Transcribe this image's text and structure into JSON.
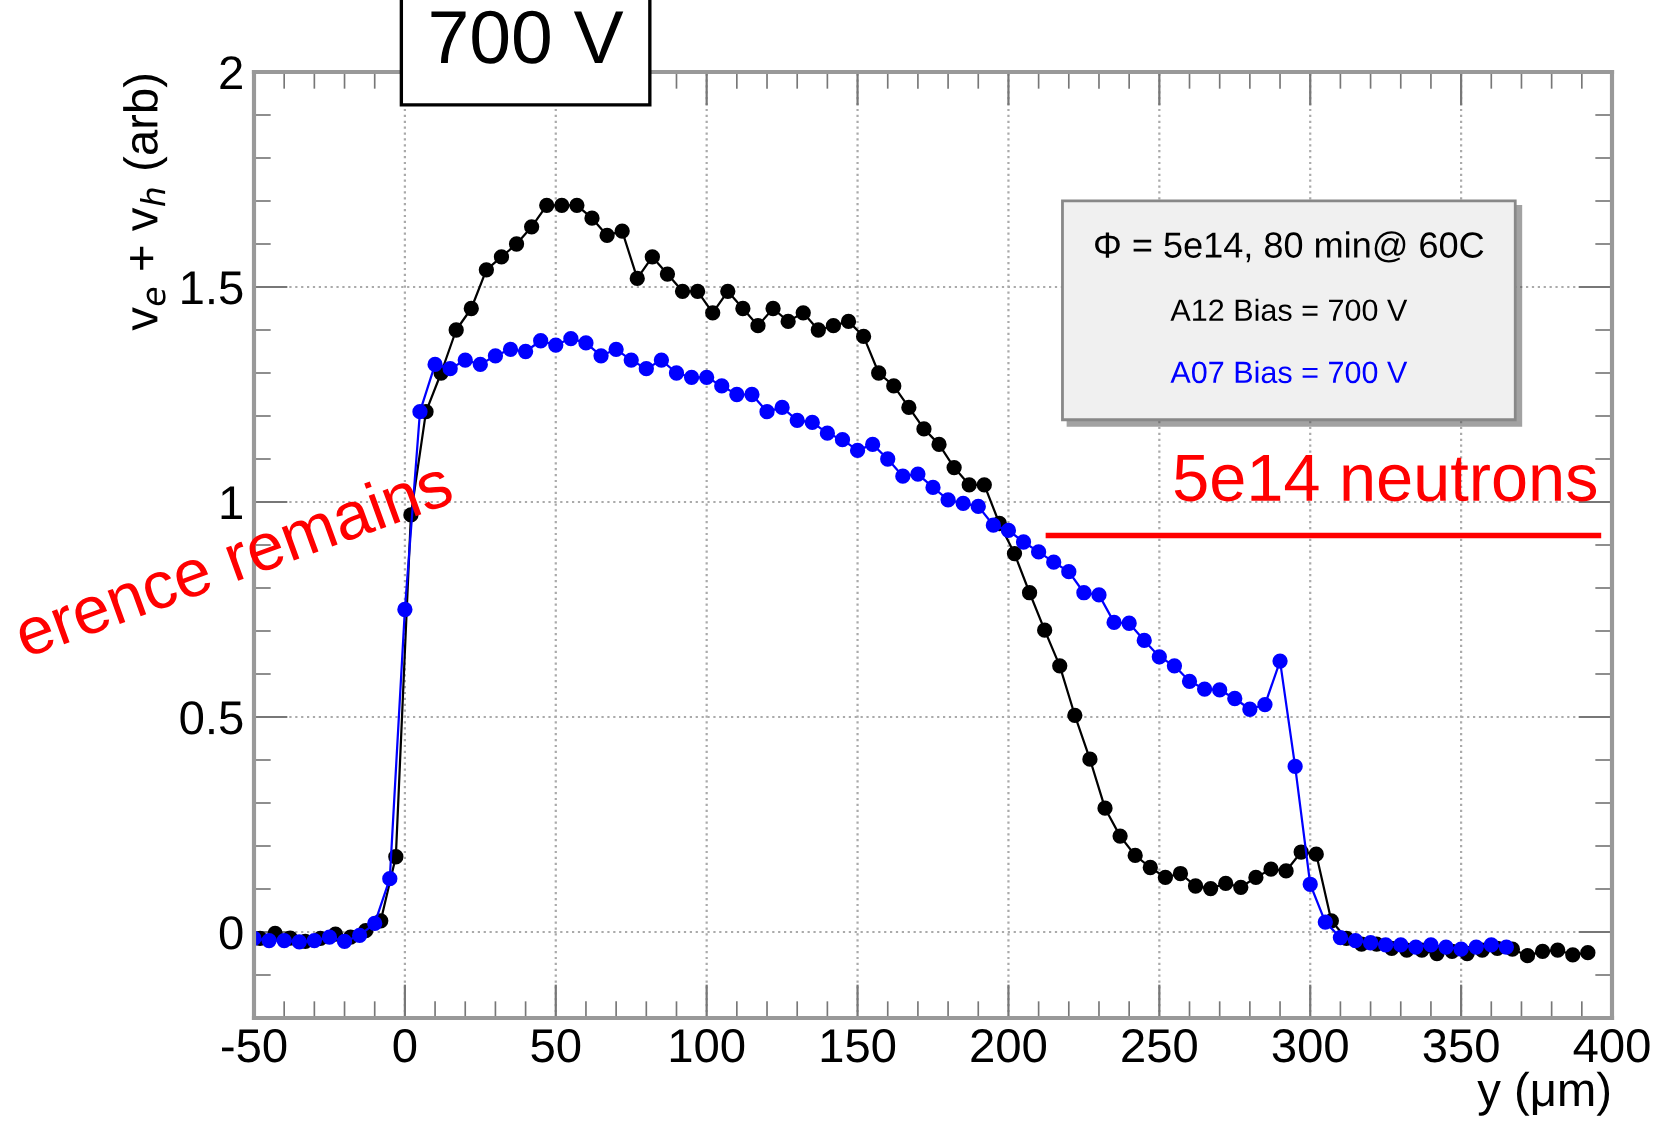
{
  "chart_data": {
    "type": "line",
    "title": "700 V",
    "xlabel": "y (μm)",
    "ylabel": "v$_{e}$ + v$_{h}$ (arb)",
    "legend_title": "Φ = 5e14, 80 min@ 60C",
    "legend": "top right",
    "grid": true,
    "marker": "circle",
    "line_style": "solid",
    "xlim": [
      -50,
      400
    ],
    "xticks": [
      -50,
      0,
      50,
      100,
      150,
      200,
      250,
      300,
      350,
      400
    ],
    "ylim": [
      -0.2,
      2
    ],
    "yticks": [
      0,
      0.5,
      1,
      1.5,
      2
    ],
    "annotations": [
      "5e14 neutrons",
      "erence remains"
    ],
    "series": [
      {
        "name": "A12 Bias = 700 V",
        "color": "#000000",
        "x": [
          -48,
          -43,
          -38,
          -33,
          -28,
          -23,
          -18,
          -13,
          -8,
          -3,
          2,
          7,
          12,
          17,
          22,
          27,
          32,
          37,
          42,
          47,
          52,
          57,
          62,
          67,
          72,
          77,
          82,
          87,
          92,
          97,
          102,
          107,
          112,
          117,
          122,
          127,
          132,
          137,
          142,
          147,
          152,
          157,
          162,
          167,
          172,
          177,
          182,
          187,
          192,
          197,
          202,
          207,
          212,
          217,
          222,
          227,
          232,
          237,
          242,
          247,
          252,
          257,
          262,
          267,
          272,
          277,
          282,
          287,
          292,
          297,
          302,
          307,
          312,
          317,
          322,
          327,
          332,
          337,
          342,
          347,
          352,
          357,
          362,
          367,
          372,
          377,
          382,
          387,
          392
        ],
        "values": [
          -0.015,
          -0.003,
          -0.014,
          -0.022,
          -0.015,
          -0.005,
          -0.012,
          0.003,
          0.026,
          0.175,
          0.97,
          1.21,
          1.3,
          1.4,
          1.45,
          1.54,
          1.57,
          1.6,
          1.64,
          1.69,
          1.69,
          1.69,
          1.66,
          1.62,
          1.63,
          1.52,
          1.57,
          1.53,
          1.49,
          1.49,
          1.44,
          1.49,
          1.45,
          1.41,
          1.45,
          1.42,
          1.44,
          1.4,
          1.41,
          1.42,
          1.385,
          1.3,
          1.27,
          1.22,
          1.17,
          1.134,
          1.08,
          1.04,
          1.04,
          0.95,
          0.88,
          0.789,
          0.702,
          0.619,
          0.504,
          0.402,
          0.288,
          0.223,
          0.178,
          0.15,
          0.127,
          0.136,
          0.107,
          0.101,
          0.113,
          0.104,
          0.127,
          0.146,
          0.142,
          0.186,
          0.181,
          0.026,
          -0.015,
          -0.028,
          -0.028,
          -0.038,
          -0.042,
          -0.042,
          -0.05,
          -0.045,
          -0.05,
          -0.042,
          -0.038,
          -0.04,
          -0.055,
          -0.045,
          -0.042,
          -0.053,
          -0.048
        ]
      },
      {
        "name": "A07 Bias = 700 V",
        "color": "#0000ff",
        "x": [
          -50,
          -45,
          -40,
          -35,
          -30,
          -25,
          -20,
          -15,
          -10,
          -5,
          0,
          5,
          10,
          15,
          20,
          25,
          30,
          35,
          40,
          45,
          50,
          55,
          60,
          65,
          70,
          75,
          80,
          85,
          90,
          95,
          100,
          105,
          110,
          115,
          120,
          125,
          130,
          135,
          140,
          145,
          150,
          155,
          160,
          165,
          170,
          175,
          180,
          185,
          190,
          195,
          200,
          205,
          210,
          215,
          220,
          225,
          230,
          235,
          240,
          245,
          250,
          255,
          260,
          265,
          270,
          275,
          280,
          285,
          290,
          295,
          300,
          305,
          310,
          315,
          320,
          325,
          330,
          335,
          340,
          345,
          350,
          355,
          360,
          365
        ],
        "values": [
          -0.015,
          -0.02,
          -0.02,
          -0.023,
          -0.02,
          -0.012,
          -0.022,
          -0.008,
          0.02,
          0.124,
          0.75,
          1.21,
          1.32,
          1.31,
          1.33,
          1.32,
          1.34,
          1.355,
          1.35,
          1.375,
          1.365,
          1.38,
          1.37,
          1.34,
          1.355,
          1.33,
          1.31,
          1.33,
          1.3,
          1.29,
          1.29,
          1.27,
          1.25,
          1.25,
          1.21,
          1.22,
          1.19,
          1.185,
          1.16,
          1.145,
          1.12,
          1.134,
          1.1,
          1.06,
          1.065,
          1.034,
          1.005,
          0.997,
          0.99,
          0.946,
          0.934,
          0.907,
          0.884,
          0.86,
          0.838,
          0.789,
          0.784,
          0.72,
          0.718,
          0.678,
          0.64,
          0.619,
          0.583,
          0.565,
          0.563,
          0.543,
          0.518,
          0.529,
          0.63,
          0.385,
          0.111,
          0.023,
          -0.013,
          -0.02,
          -0.025,
          -0.03,
          -0.03,
          -0.035,
          -0.03,
          -0.035,
          -0.04,
          -0.035,
          -0.03,
          -0.035
        ]
      }
    ]
  }
}
